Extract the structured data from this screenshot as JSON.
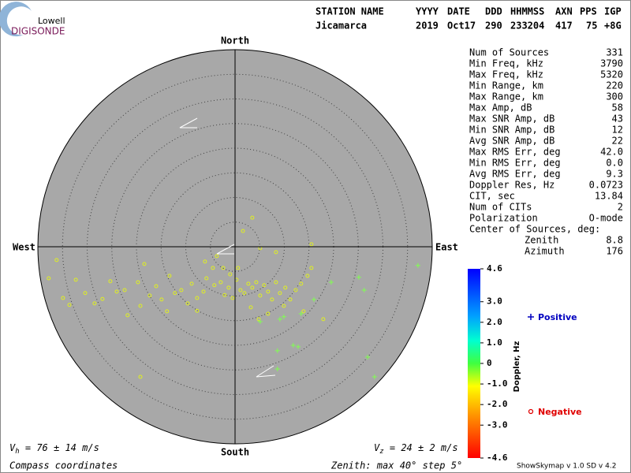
{
  "logo": {
    "top": "Lowell",
    "bottom": "DIGISONDE"
  },
  "header": {
    "labels": [
      "STATION NAME",
      "YYYY",
      "DATE",
      "DDD",
      "HHMMSS",
      "AXN",
      "PPS",
      "IGP"
    ],
    "values": [
      "Jicamarca",
      "2019",
      "Oct17",
      "290",
      "233204",
      "417",
      "75",
      "+8G"
    ]
  },
  "stats": {
    "rows": [
      [
        "Num of Sources",
        "331"
      ],
      [
        "Min Freq, kHz",
        "3790"
      ],
      [
        "Max Freq, kHz",
        "5320"
      ],
      [
        "Min Range, km",
        "220"
      ],
      [
        "Max Range, km",
        "300"
      ],
      [
        "Max Amp, dB",
        "58"
      ],
      [
        "Max SNR Amp, dB",
        "43"
      ],
      [
        "Min SNR Amp, dB",
        "12"
      ],
      [
        "Avg SNR Amp, dB",
        "22"
      ],
      [
        "Max RMS Err, deg",
        "42.0"
      ],
      [
        "Min RMS Err, deg",
        "0.0"
      ],
      [
        "Avg RMS Err, deg",
        "9.3"
      ],
      [
        "Doppler Res, Hz",
        "0.0723"
      ],
      [
        "CIT, sec",
        "13.84"
      ],
      [
        "Num of CITs",
        "2"
      ],
      [
        "Polarization",
        "O-mode"
      ]
    ],
    "center_label": "Center of Sources, deg:",
    "center": [
      [
        "Zenith",
        "8.8"
      ],
      [
        "Azimuth",
        "176"
      ]
    ]
  },
  "chart_data": {
    "type": "scatter",
    "north": "North",
    "south": "South",
    "east": "East",
    "west": "West",
    "xlim": [
      -40,
      40
    ],
    "ylim": [
      -40,
      40
    ],
    "rings": [
      5,
      10,
      15,
      20,
      25,
      30,
      35
    ],
    "series": [
      {
        "name": "Negative",
        "color": "#e0f020",
        "x": [
          -36.2,
          -37.8,
          -34.9,
          -33.6,
          -32.3,
          -30.4,
          -28.5,
          -26.9,
          -25.3,
          -24.0,
          -22.4,
          -21.8,
          -19.7,
          -19.2,
          -18.4,
          -17.3,
          -16.0,
          -14.9,
          -13.8,
          -13.3,
          -12.2,
          -10.9,
          -9.6,
          -8.8,
          -7.7,
          -6.4,
          -5.8,
          -4.5,
          -4.2,
          -2.9,
          -2.1,
          -1.3,
          -0.5,
          0.3,
          1.1,
          1.9,
          2.7,
          3.5,
          4.3,
          5.1,
          5.9,
          6.7,
          7.5,
          8.3,
          9.1,
          10.2,
          11.2,
          12.3,
          13.4,
          14.7,
          15.5,
          1.6,
          3.5,
          5.1,
          8.3,
          -3.7,
          -2.4,
          -19.2,
          -6.1,
          -1.0,
          0.6,
          3.2,
          4.8,
          6.7,
          15.5,
          13.9,
          9.9,
          17.9,
          -7.7
        ],
        "values": [
          -2.7,
          -6.4,
          -10.4,
          -11.8,
          -6.7,
          -9.4,
          -11.5,
          -10.6,
          -7.0,
          -9.1,
          -8.8,
          -13.9,
          -7.2,
          -12.0,
          -3.5,
          -9.9,
          -8.0,
          -10.7,
          -13.1,
          -5.9,
          -9.4,
          -8.8,
          -11.5,
          -7.5,
          -10.4,
          -9.1,
          -6.4,
          -4.3,
          -7.8,
          -7.2,
          -9.8,
          -8.3,
          -10.4,
          -6.7,
          -8.8,
          -9.4,
          -7.5,
          -8.3,
          -7.2,
          -9.9,
          -7.8,
          -9.1,
          -10.7,
          -7.2,
          -9.4,
          -8.3,
          -10.7,
          -8.8,
          -7.5,
          -5.9,
          -4.3,
          3.2,
          5.9,
          -0.3,
          -1.1,
          -1.9,
          -4.3,
          -26.4,
          -3.0,
          -5.6,
          -4.3,
          -12.3,
          -14.7,
          -13.6,
          0.5,
          -13.1,
          -12.0,
          -14.7,
          -13.0
        ]
      },
      {
        "name": "Positive",
        "color": "#80ff50",
        "x": [
          25.1,
          26.2,
          37.1,
          28.3,
          26.9,
          8.6,
          9.9,
          11.8,
          12.8,
          8.6,
          9.1,
          5.1,
          13.4,
          19.5,
          16.0
        ],
        "values": [
          -6.2,
          -8.8,
          -3.8,
          -26.4,
          -22.4,
          -21.1,
          -14.2,
          -20.0,
          -20.3,
          -24.8,
          -14.7,
          -15.2,
          -13.6,
          -7.2,
          -10.7
        ]
      }
    ]
  },
  "colorbar": {
    "label": "Doppler, Hz",
    "lim": [
      -4.6,
      4.6
    ],
    "ticks": [
      4.6,
      {
        "value": 3,
        "label": "3.0"
      },
      {
        "value": 2,
        "label": "2.0"
      },
      {
        "value": 1,
        "label": "1.0"
      },
      0,
      {
        "value": -1,
        "label": "-1.0"
      },
      {
        "value": -2,
        "label": "-2.0"
      },
      {
        "value": -3,
        "label": "-3.0"
      },
      -4.6
    ]
  },
  "velocity": {
    "vh": [
      "V",
      "h",
      " = 76 ± 14 m/s"
    ],
    "vz": [
      "V",
      "z",
      " = 24 ± 2 m/s"
    ]
  },
  "footer": {
    "coords": "Compass coordinates",
    "zenith": "Zenith: max 40°  step 5°",
    "version": "ShowSkymap v 1.0  SD v 4.2"
  }
}
